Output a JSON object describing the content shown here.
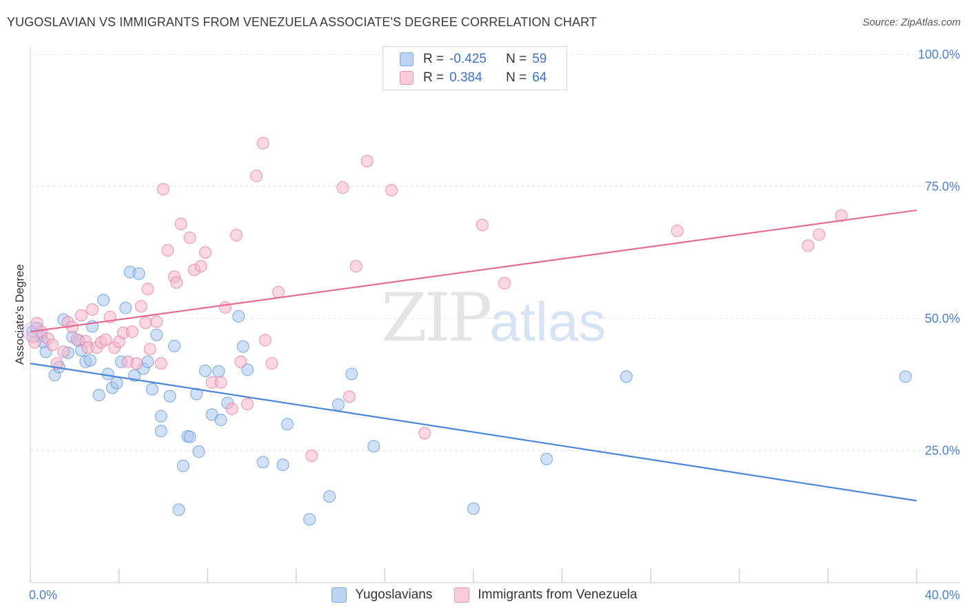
{
  "title": "YUGOSLAVIAN VS IMMIGRANTS FROM VENEZUELA ASSOCIATE'S DEGREE CORRELATION CHART",
  "source": "Source: ZipAtlas.com",
  "watermark": {
    "zip": "ZIP",
    "atlas": "atlas"
  },
  "legend": {
    "r_label": "R =",
    "n_label": "N =",
    "items": [
      {
        "r": "-0.425",
        "n": "59",
        "color": "#a9c6ee"
      },
      {
        "r": "0.384",
        "n": "64",
        "color": "#f5b7cb"
      }
    ]
  },
  "chart_data": {
    "type": "scatter",
    "title": "YUGOSLAVIAN VS IMMIGRANTS FROM VENEZUELA ASSOCIATE'S DEGREE CORRELATION CHART",
    "xlabel": "",
    "ylabel": "Associate's Degree",
    "xlim": [
      0,
      40
    ],
    "ylim": [
      0,
      100
    ],
    "x_tick_labels": [
      "0.0%",
      "40.0%"
    ],
    "y_ticks": [
      25,
      50,
      75,
      100
    ],
    "y_tick_labels": [
      "25.0%",
      "50.0%",
      "75.0%",
      "100.0%"
    ],
    "grid": true,
    "legend_position": "top-center",
    "series": [
      {
        "name": "Yugoslavians",
        "color": "#4a86d8",
        "fill": "#a9c6ee",
        "trend": {
          "x": [
            0,
            40
          ],
          "y": [
            41.5,
            15.5
          ]
        },
        "points": [
          [
            0.1,
            47.5
          ],
          [
            0.3,
            48.2
          ],
          [
            0.5,
            46.6
          ],
          [
            0.6,
            45.5
          ],
          [
            0.7,
            43.7
          ],
          [
            1.1,
            39.3
          ],
          [
            1.3,
            40.8
          ],
          [
            1.5,
            49.8
          ],
          [
            1.7,
            43.5
          ],
          [
            1.9,
            46.5
          ],
          [
            2.2,
            45.8
          ],
          [
            2.3,
            44.0
          ],
          [
            2.5,
            41.8
          ],
          [
            2.7,
            42.1
          ],
          [
            2.8,
            48.5
          ],
          [
            3.1,
            35.5
          ],
          [
            3.3,
            53.5
          ],
          [
            3.5,
            39.5
          ],
          [
            3.7,
            36.9
          ],
          [
            3.9,
            37.8
          ],
          [
            4.1,
            41.8
          ],
          [
            4.3,
            52.0
          ],
          [
            4.5,
            58.8
          ],
          [
            4.7,
            39.2
          ],
          [
            4.9,
            58.5
          ],
          [
            5.1,
            40.5
          ],
          [
            5.3,
            41.8
          ],
          [
            5.5,
            36.6
          ],
          [
            5.7,
            46.9
          ],
          [
            5.9,
            31.5
          ],
          [
            5.9,
            28.7
          ],
          [
            6.3,
            35.3
          ],
          [
            6.5,
            44.8
          ],
          [
            6.7,
            13.8
          ],
          [
            6.9,
            22.1
          ],
          [
            7.1,
            27.7
          ],
          [
            7.2,
            27.6
          ],
          [
            7.5,
            35.7
          ],
          [
            7.6,
            24.8
          ],
          [
            7.9,
            40.1
          ],
          [
            8.2,
            31.8
          ],
          [
            8.5,
            40.0
          ],
          [
            8.6,
            30.8
          ],
          [
            8.9,
            34.0
          ],
          [
            9.4,
            50.4
          ],
          [
            9.6,
            44.7
          ],
          [
            9.8,
            40.3
          ],
          [
            10.5,
            22.8
          ],
          [
            11.4,
            22.3
          ],
          [
            11.6,
            30.0
          ],
          [
            12.6,
            12.0
          ],
          [
            13.5,
            16.3
          ],
          [
            13.9,
            33.7
          ],
          [
            14.5,
            39.5
          ],
          [
            15.5,
            25.8
          ],
          [
            20.0,
            14.0
          ],
          [
            23.3,
            23.4
          ],
          [
            26.9,
            39.0
          ],
          [
            39.5,
            39.0
          ]
        ]
      },
      {
        "name": "Immigrants from Venezuela",
        "color": "#e26b94",
        "fill": "#f5b7cb",
        "trend": {
          "x": [
            0,
            40
          ],
          "y": [
            47.5,
            70.5
          ]
        },
        "points": [
          [
            0.1,
            46.5
          ],
          [
            0.2,
            45.5
          ],
          [
            0.3,
            49.1
          ],
          [
            0.5,
            47.5
          ],
          [
            0.8,
            46.2
          ],
          [
            1.0,
            45.0
          ],
          [
            1.2,
            41.5
          ],
          [
            1.5,
            43.7
          ],
          [
            1.7,
            49.3
          ],
          [
            1.9,
            48.4
          ],
          [
            2.1,
            46.0
          ],
          [
            2.3,
            50.6
          ],
          [
            2.5,
            45.7
          ],
          [
            2.6,
            44.5
          ],
          [
            2.8,
            51.7
          ],
          [
            3.0,
            44.5
          ],
          [
            3.2,
            45.5
          ],
          [
            3.4,
            46.0
          ],
          [
            3.6,
            50.3
          ],
          [
            3.8,
            44.5
          ],
          [
            4.0,
            45.6
          ],
          [
            4.2,
            47.3
          ],
          [
            4.4,
            41.8
          ],
          [
            4.6,
            47.5
          ],
          [
            4.8,
            41.5
          ],
          [
            5.0,
            52.3
          ],
          [
            5.2,
            49.2
          ],
          [
            5.3,
            55.6
          ],
          [
            5.4,
            44.2
          ],
          [
            5.7,
            49.4
          ],
          [
            5.9,
            41.5
          ],
          [
            6.0,
            74.5
          ],
          [
            6.2,
            62.9
          ],
          [
            6.5,
            57.9
          ],
          [
            6.6,
            56.8
          ],
          [
            6.8,
            67.9
          ],
          [
            7.2,
            65.3
          ],
          [
            7.4,
            59.2
          ],
          [
            7.7,
            59.9
          ],
          [
            7.9,
            62.5
          ],
          [
            8.2,
            37.9
          ],
          [
            8.6,
            37.9
          ],
          [
            8.8,
            52.1
          ],
          [
            9.1,
            32.9
          ],
          [
            9.3,
            65.8
          ],
          [
            9.5,
            41.8
          ],
          [
            9.8,
            33.8
          ],
          [
            10.2,
            77.0
          ],
          [
            10.5,
            83.2
          ],
          [
            10.6,
            45.9
          ],
          [
            10.9,
            41.5
          ],
          [
            11.2,
            55.0
          ],
          [
            12.7,
            24.0
          ],
          [
            14.1,
            74.8
          ],
          [
            14.4,
            35.2
          ],
          [
            14.7,
            59.9
          ],
          [
            15.2,
            79.8
          ],
          [
            16.3,
            74.3
          ],
          [
            17.8,
            28.3
          ],
          [
            20.4,
            67.7
          ],
          [
            21.4,
            56.7
          ],
          [
            29.2,
            66.6
          ],
          [
            35.1,
            63.8
          ],
          [
            35.6,
            65.9
          ]
        ],
        "extra_points": [
          [
            36.6,
            69.5
          ]
        ]
      }
    ]
  }
}
